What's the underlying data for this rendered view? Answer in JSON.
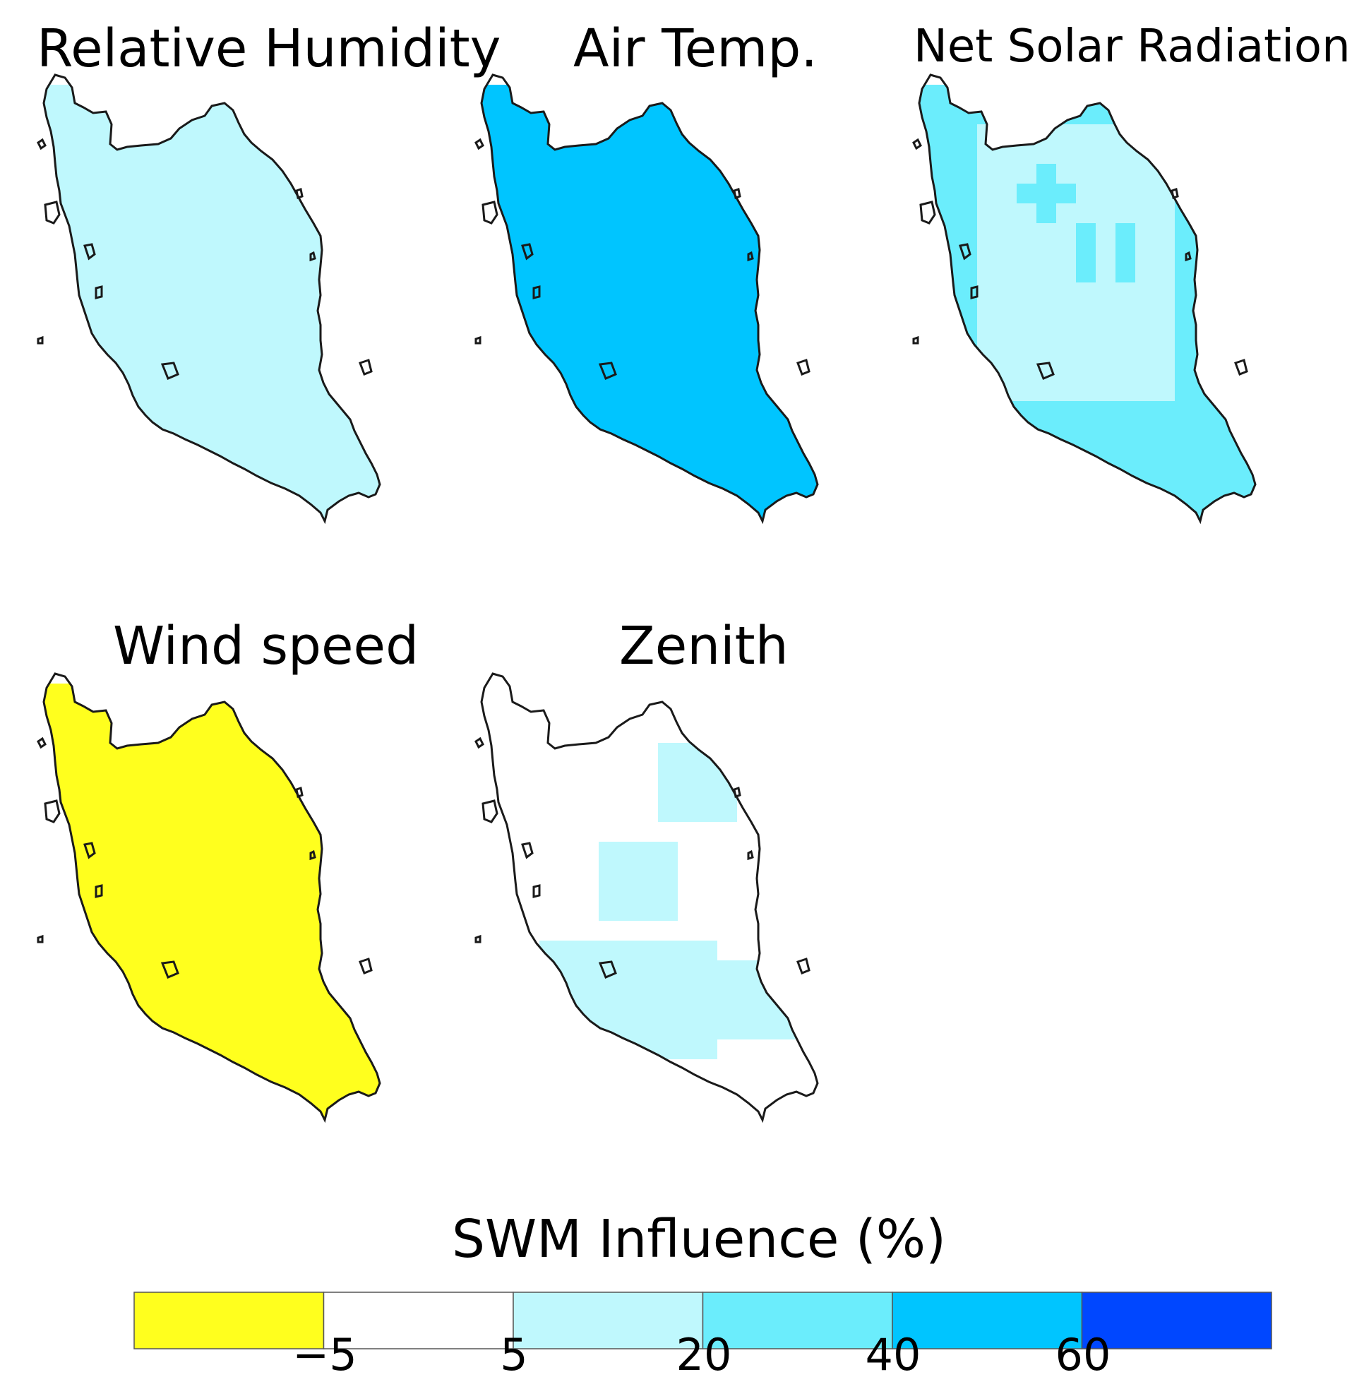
{
  "panels": [
    {
      "id": "rh",
      "title": "Relative Humidity",
      "fill": "#bff8fd",
      "class_label": "5 to 20"
    },
    {
      "id": "at",
      "title": "Air Temp.",
      "fill": "#00c5ff",
      "class_label": "40 to 60"
    },
    {
      "id": "nsr",
      "title": "Net Solar Radiation",
      "fill": "#bff8fd",
      "secondary_fill": "#6bedfc"
    },
    {
      "id": "ws",
      "title": "Wind speed",
      "fill": "#ffff1e",
      "class_label": "< -5"
    },
    {
      "id": "zen",
      "title": "Zenith",
      "fill": "#ffffff",
      "secondary_fill": "#bff8fd"
    }
  ],
  "legend": {
    "title": "SWM Influence (%)",
    "tick_labels": [
      "−5",
      "5",
      "20",
      "40",
      "60"
    ],
    "classes": [
      {
        "range": "< -5",
        "color": "#ffff1e"
      },
      {
        "range": "-5 to 5",
        "color": "#ffffff"
      },
      {
        "range": "5 to 20",
        "color": "#bff8fd"
      },
      {
        "range": "20 to 40",
        "color": "#6bedfc"
      },
      {
        "range": "40 to 60",
        "color": "#00c5ff"
      },
      {
        "range": "> 60",
        "color": "#0047ff"
      }
    ]
  },
  "colors": {
    "outline": "#1a1a1a"
  }
}
